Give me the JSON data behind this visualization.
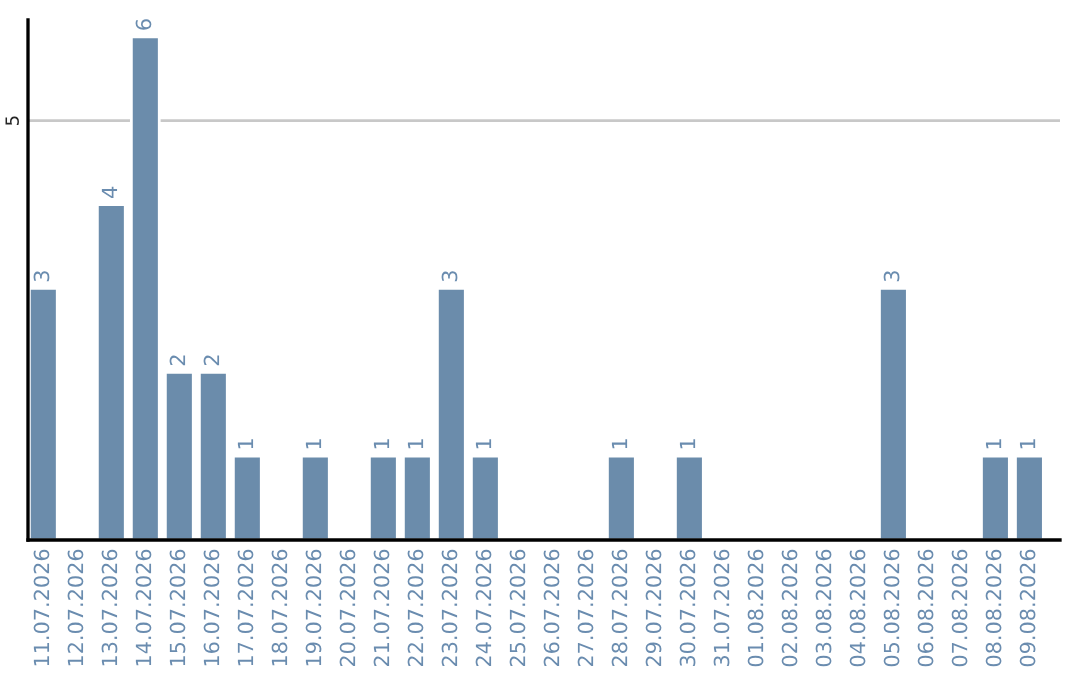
{
  "chart_data": {
    "type": "bar",
    "categories": [
      "11.07.2026",
      "12.07.2026",
      "13.07.2026",
      "14.07.2026",
      "15.07.2026",
      "16.07.2026",
      "17.07.2026",
      "18.07.2026",
      "19.07.2026",
      "20.07.2026",
      "21.07.2026",
      "22.07.2026",
      "23.07.2026",
      "24.07.2026",
      "25.07.2026",
      "26.07.2026",
      "27.07.2026",
      "28.07.2026",
      "29.07.2026",
      "30.07.2026",
      "31.07.2026",
      "01.08.2026",
      "02.08.2026",
      "03.08.2026",
      "04.08.2026",
      "05.08.2026",
      "06.08.2026",
      "07.08.2026",
      "08.08.2026",
      "09.08.2026"
    ],
    "values": [
      3,
      0,
      4,
      6,
      2,
      2,
      1,
      0,
      1,
      0,
      1,
      1,
      3,
      1,
      0,
      0,
      0,
      1,
      0,
      1,
      0,
      0,
      0,
      0,
      0,
      3,
      0,
      0,
      1,
      1
    ],
    "value_labels": [
      "3",
      null,
      "4",
      "6",
      "2",
      "2",
      "1",
      null,
      "1",
      null,
      "1",
      "1",
      "3",
      "1",
      null,
      null,
      null,
      "1",
      null,
      "1",
      null,
      null,
      null,
      null,
      null,
      "3",
      null,
      null,
      "1",
      "1"
    ],
    "color": "#6b8cab",
    "ylim": [
      0,
      6.2
    ],
    "yticks": [
      5
    ],
    "grid": "y",
    "legend": false
  }
}
